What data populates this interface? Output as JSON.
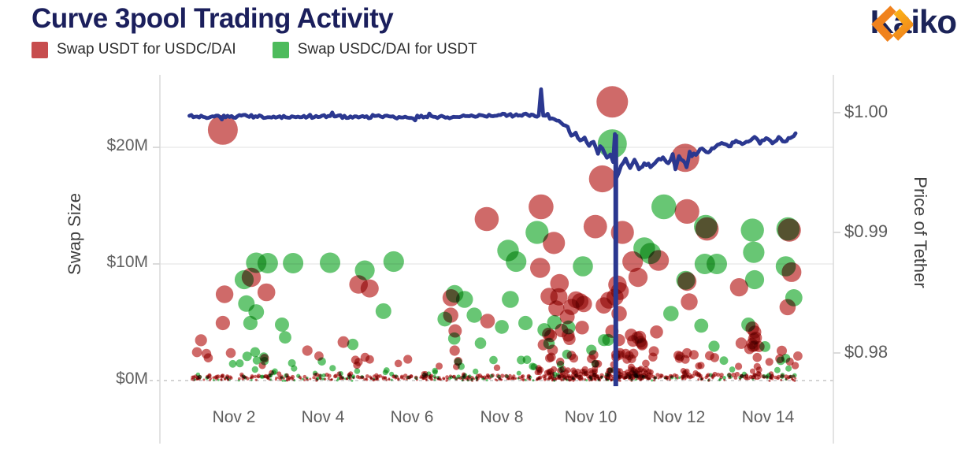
{
  "header": {
    "title": "Curve 3pool Trading Activity",
    "title_color": "#1b1f5c",
    "brand": {
      "name": "Kaiko",
      "text_color": "#1b2358",
      "icon_orange_dark": "#f0821d",
      "icon_orange_light": "#fbb216"
    }
  },
  "legend": {
    "items": [
      {
        "label": "Swap USDT for USDC/DAI",
        "color": "#c74d4e"
      },
      {
        "label": "Swap USDC/DAI for USDT",
        "color": "#4dbb5c"
      }
    ]
  },
  "chart_data": {
    "type": "scatter",
    "title": "Curve 3pool Trading Activity",
    "x_axis": {
      "tick_labels": [
        "Nov 2",
        "Nov 4",
        "Nov 6",
        "Nov 8",
        "Nov 10",
        "Nov 12",
        "Nov 14"
      ],
      "tick_days": [
        2,
        4,
        6,
        8,
        10,
        12,
        14
      ],
      "range_days": [
        0.34,
        15.47
      ]
    },
    "y_axis_left": {
      "label": "Swap Size",
      "tick_labels": [
        "$0M",
        "$10M",
        "$20M"
      ],
      "tick_values": [
        0,
        10,
        20
      ],
      "units": "USD millions",
      "range": [
        0,
        26.2
      ]
    },
    "y_axis_right": {
      "label": "Price of Tether",
      "tick_labels": [
        "$1.00",
        "$0.99",
        "$0.98"
      ],
      "tick_values": [
        1.0,
        0.99,
        0.98
      ],
      "range": [
        0.9742,
        1.0032
      ]
    },
    "grid_color": "#ececec",
    "zero_line_dashed": true,
    "bubble_radius_px_per_sqrt_million": 4.1,
    "flash_crash_wick": {
      "day": 10.58,
      "price_top": 0.9982,
      "price_low": 0.9772
    },
    "series": [
      {
        "name": "Swap USDT for USDC/DAI",
        "type": "bubble",
        "color": "#c2403f",
        "opacity": 0.78,
        "points": [
          [
            1.75,
            21.5
          ],
          [
            10.5,
            23.9
          ],
          [
            12.14,
            19.1
          ],
          [
            10.28,
            17.3
          ],
          [
            8.9,
            14.9
          ],
          [
            12.18,
            14.5
          ],
          [
            7.68,
            13.85
          ],
          [
            10.12,
            13.2
          ],
          [
            12.63,
            13.0
          ],
          [
            14.48,
            12.9
          ],
          [
            10.73,
            12.7
          ],
          [
            9.19,
            11.8
          ],
          [
            11.54,
            10.3
          ],
          [
            10.96,
            10.2
          ],
          [
            8.88,
            9.66
          ],
          [
            14.53,
            9.3
          ],
          [
            2.39,
            8.85
          ],
          [
            11.08,
            8.85
          ],
          [
            12.18,
            8.5
          ],
          [
            4.8,
            8.24
          ],
          [
            13.35,
            8.0
          ],
          [
            5.05,
            7.9
          ],
          [
            2.73,
            7.57
          ],
          [
            1.79,
            7.4
          ],
          [
            6.88,
            7.1
          ],
          [
            12.23,
            6.76
          ],
          [
            14.44,
            6.3
          ],
          [
            6.87,
            5.6
          ],
          [
            7.7,
            5.1
          ],
          [
            1.75,
            4.93
          ],
          [
            6.97,
            4.26
          ],
          [
            1.26,
            3.45
          ],
          [
            4.46,
            3.3
          ],
          [
            13.4,
            3.2
          ],
          [
            3.65,
            2.57
          ],
          [
            6.96,
            2.57
          ],
          [
            1.17,
            2.43
          ],
          [
            1.93,
            2.36
          ],
          [
            1.38,
            2.3
          ],
          [
            3.91,
            2.1
          ],
          [
            14.67,
            2.1
          ]
        ]
      },
      {
        "name": "Swap USDC/DAI for USDT",
        "type": "bubble",
        "color": "#3eb64d",
        "opacity": 0.78,
        "points": [
          [
            10.5,
            20.3
          ],
          [
            11.66,
            14.9
          ],
          [
            12.6,
            13.2
          ],
          [
            14.45,
            13.0
          ],
          [
            13.65,
            12.9
          ],
          [
            8.81,
            12.7
          ],
          [
            11.22,
            11.35
          ],
          [
            8.16,
            11.15
          ],
          [
            13.68,
            11.0
          ],
          [
            11.36,
            10.9
          ],
          [
            8.34,
            10.2
          ],
          [
            5.59,
            10.2
          ],
          [
            2.5,
            10.1
          ],
          [
            4.16,
            10.1
          ],
          [
            2.76,
            10.07
          ],
          [
            3.33,
            10.07
          ],
          [
            12.58,
            10.0
          ],
          [
            12.85,
            10.0
          ],
          [
            9.84,
            9.8
          ],
          [
            14.4,
            9.8
          ],
          [
            4.94,
            9.45
          ],
          [
            2.23,
            8.65
          ],
          [
            13.7,
            8.65
          ],
          [
            12.15,
            8.6
          ],
          [
            6.96,
            7.43
          ],
          [
            14.58,
            7.1
          ],
          [
            7.18,
            6.96
          ],
          [
            8.21,
            6.96
          ],
          [
            2.28,
            6.6
          ],
          [
            5.36,
            5.95
          ],
          [
            2.5,
            5.88
          ],
          [
            11.82,
            5.74
          ],
          [
            7.4,
            5.6
          ],
          [
            6.74,
            5.27
          ],
          [
            2.37,
            4.93
          ],
          [
            8.55,
            4.93
          ],
          [
            3.08,
            4.8
          ],
          [
            13.56,
            4.8
          ],
          [
            12.5,
            4.7
          ],
          [
            8.02,
            4.6
          ],
          [
            3.15,
            3.7
          ],
          [
            6.95,
            3.6
          ],
          [
            7.54,
            3.2
          ],
          [
            4.67,
            3.1
          ],
          [
            2.67,
            2.03
          ]
        ]
      },
      {
        "name": "Price of Tether",
        "type": "line",
        "color": "#2b3890",
        "points": [
          [
            1.0,
            0.99974
          ],
          [
            1.35,
            0.99962
          ],
          [
            1.6,
            0.99975
          ],
          [
            1.9,
            0.99964
          ],
          [
            2.3,
            0.99972
          ],
          [
            2.8,
            0.99962
          ],
          [
            3.3,
            0.9997
          ],
          [
            3.8,
            0.99962
          ],
          [
            4.3,
            0.99969
          ],
          [
            4.8,
            0.9996
          ],
          [
            5.3,
            0.99967
          ],
          [
            5.8,
            0.9996
          ],
          [
            6.3,
            0.99967
          ],
          [
            6.8,
            0.99962
          ],
          [
            7.2,
            0.99971
          ],
          [
            7.6,
            0.99976
          ],
          [
            7.95,
            0.99981
          ],
          [
            8.3,
            0.99976
          ],
          [
            8.6,
            0.99982
          ],
          [
            8.85,
            0.99977
          ],
          [
            8.9,
            1.00195
          ],
          [
            8.95,
            0.99976
          ],
          [
            9.15,
            0.99952
          ],
          [
            9.35,
            0.99915
          ],
          [
            9.5,
            0.99882
          ],
          [
            9.58,
            0.99808
          ],
          [
            9.68,
            0.99833
          ],
          [
            9.78,
            0.99768
          ],
          [
            9.88,
            0.99793
          ],
          [
            9.98,
            0.99723
          ],
          [
            10.08,
            0.99757
          ],
          [
            10.18,
            0.99657
          ],
          [
            10.28,
            0.99702
          ],
          [
            10.38,
            0.99624
          ],
          [
            10.46,
            0.99652
          ],
          [
            10.52,
            0.99588
          ],
          [
            10.56,
            0.99822
          ],
          [
            10.6,
            0.9946
          ],
          [
            10.7,
            0.99558
          ],
          [
            10.8,
            0.99618
          ],
          [
            10.9,
            0.99538
          ],
          [
            11.0,
            0.99608
          ],
          [
            11.1,
            0.99528
          ],
          [
            11.22,
            0.99578
          ],
          [
            11.36,
            0.99545
          ],
          [
            11.5,
            0.99598
          ],
          [
            11.64,
            0.99628
          ],
          [
            11.76,
            0.99578
          ],
          [
            11.86,
            0.99655
          ],
          [
            11.92,
            0.99528
          ],
          [
            12.0,
            0.99638
          ],
          [
            12.1,
            0.99598
          ],
          [
            12.17,
            0.99545
          ],
          [
            12.24,
            0.99675
          ],
          [
            12.38,
            0.99648
          ],
          [
            12.52,
            0.99702
          ],
          [
            12.66,
            0.99668
          ],
          [
            12.82,
            0.99715
          ],
          [
            12.96,
            0.99748
          ],
          [
            13.12,
            0.99718
          ],
          [
            13.28,
            0.99766
          ],
          [
            13.42,
            0.99738
          ],
          [
            13.56,
            0.99758
          ],
          [
            13.7,
            0.99798
          ],
          [
            13.82,
            0.99742
          ],
          [
            13.96,
            0.99788
          ],
          [
            14.1,
            0.99744
          ],
          [
            14.24,
            0.99798
          ],
          [
            14.38,
            0.99758
          ],
          [
            14.5,
            0.99788
          ],
          [
            14.62,
            0.99828
          ]
        ]
      }
    ],
    "noise_clusters": [
      {
        "series": "red",
        "day_min": 1.05,
        "day_max": 14.65,
        "size_min": 0.04,
        "size_max": 0.45,
        "count": 420,
        "pow": 1
      },
      {
        "series": "red",
        "day_min": 8.8,
        "day_max": 11.35,
        "size_min": 0.08,
        "size_max": 1.0,
        "count": 170,
        "pow": 2
      },
      {
        "series": "green",
        "day_min": 1.05,
        "day_max": 14.6,
        "size_min": 0.05,
        "size_max": 0.55,
        "count": 110,
        "pow": 2
      },
      {
        "series": "red",
        "day_min": 8.95,
        "day_max": 10.68,
        "size_min": 0.8,
        "size_max": 8.5,
        "count": 46,
        "pow": 2.2
      },
      {
        "series": "green",
        "day_min": 8.95,
        "day_max": 10.6,
        "size_min": 0.8,
        "size_max": 5.5,
        "count": 12,
        "pow": 2
      },
      {
        "series": "red",
        "day_min": 10.7,
        "day_max": 11.5,
        "size_min": 0.3,
        "size_max": 4.2,
        "count": 32,
        "pow": 2.2
      },
      {
        "series": "red",
        "day_min": 11.9,
        "day_max": 12.5,
        "size_min": 0.3,
        "size_max": 3.0,
        "count": 22,
        "pow": 2
      },
      {
        "series": "red",
        "day_min": 13.58,
        "day_max": 13.82,
        "size_min": 0.4,
        "size_max": 4.6,
        "count": 13,
        "pow": 1.6
      },
      {
        "series": "green",
        "day_min": 12.6,
        "day_max": 14.6,
        "size_min": 0.4,
        "size_max": 3.0,
        "count": 16,
        "pow": 2
      },
      {
        "series": "red",
        "day_min": 12.6,
        "day_max": 14.65,
        "size_min": 0.3,
        "size_max": 2.6,
        "count": 18,
        "pow": 2
      },
      {
        "series": "red",
        "day_min": 5.8,
        "day_max": 8.8,
        "size_min": 0.2,
        "size_max": 2.4,
        "count": 16,
        "pow": 2
      },
      {
        "series": "green",
        "day_min": 5.8,
        "day_max": 8.8,
        "size_min": 0.2,
        "size_max": 2.4,
        "count": 14,
        "pow": 2
      },
      {
        "series": "green",
        "day_min": 1.9,
        "day_max": 3.4,
        "size_min": 0.4,
        "size_max": 2.4,
        "count": 14,
        "pow": 2
      },
      {
        "series": "red",
        "day_min": 1.1,
        "day_max": 5.7,
        "size_min": 0.3,
        "size_max": 2.0,
        "count": 16,
        "pow": 2
      },
      {
        "series": "green",
        "day_min": 3.8,
        "day_max": 5.7,
        "size_min": 0.3,
        "size_max": 2.2,
        "count": 10,
        "pow": 2
      }
    ]
  }
}
